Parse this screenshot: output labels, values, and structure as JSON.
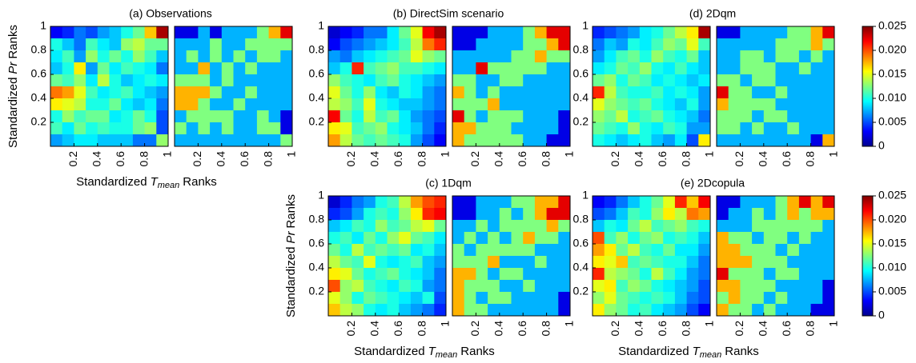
{
  "chart_data": [
    {
      "type": "heatmap",
      "title": "(a) Observations",
      "xlim": [
        0,
        1
      ],
      "ylim": [
        0,
        1
      ],
      "xticks": [
        0.2,
        0.4,
        0.6,
        0.8,
        1
      ],
      "yticks": [
        0.2,
        0.4,
        0.6,
        0.8,
        1
      ],
      "xlabel": {
        "prefix": "Standardized",
        "symbol": "T",
        "subscript": "mean",
        "suffix": "Ranks"
      },
      "ylabel": {
        "prefix": "Standardized",
        "symbol": "Pr",
        "suffix": "Ranks"
      },
      "matrix": [
        [
          0.003,
          0.004,
          0.006,
          0.005,
          0.007,
          0.008,
          0.01,
          0.012,
          0.017,
          0.024
        ],
        [
          0.01,
          0.008,
          0.006,
          0.011,
          0.009,
          0.008,
          0.013,
          0.014,
          0.012,
          0.012
        ],
        [
          0.009,
          0.011,
          0.007,
          0.013,
          0.01,
          0.012,
          0.01,
          0.013,
          0.011,
          0.008
        ],
        [
          0.008,
          0.01,
          0.016,
          0.007,
          0.012,
          0.009,
          0.011,
          0.01,
          0.009,
          0.006
        ],
        [
          0.012,
          0.011,
          0.013,
          0.009,
          0.014,
          0.01,
          0.008,
          0.009,
          0.01,
          0.009
        ],
        [
          0.019,
          0.018,
          0.015,
          0.011,
          0.009,
          0.01,
          0.011,
          0.009,
          0.008,
          0.007
        ],
        [
          0.016,
          0.015,
          0.014,
          0.01,
          0.01,
          0.012,
          0.009,
          0.008,
          0.009,
          0.006
        ],
        [
          0.01,
          0.013,
          0.011,
          0.012,
          0.012,
          0.009,
          0.01,
          0.012,
          0.01,
          0.005
        ],
        [
          0.011,
          0.009,
          0.012,
          0.01,
          0.011,
          0.01,
          0.01,
          0.012,
          0.013,
          0.005
        ],
        [
          0.007,
          0.008,
          0.009,
          0.009,
          0.008,
          0.008,
          0.008,
          0.006,
          0.006,
          0.013
        ]
      ]
    },
    {
      "type": "heatmap",
      "title": "(b) DirectSim scenario",
      "xlim": [
        0,
        1
      ],
      "ylim": [
        0,
        1
      ],
      "xticks": [
        0.2,
        0.4,
        0.6,
        0.8,
        1
      ],
      "yticks": [
        0.2,
        0.4,
        0.6,
        0.8,
        1
      ],
      "matrix": [
        [
          0.002,
          0.003,
          0.004,
          0.006,
          0.006,
          0.009,
          0.012,
          0.015,
          0.022,
          0.024
        ],
        [
          0.003,
          0.005,
          0.006,
          0.007,
          0.008,
          0.009,
          0.011,
          0.014,
          0.019,
          0.021
        ],
        [
          0.007,
          0.006,
          0.008,
          0.009,
          0.01,
          0.011,
          0.012,
          0.015,
          0.013,
          0.012
        ],
        [
          0.008,
          0.01,
          0.021,
          0.011,
          0.012,
          0.013,
          0.011,
          0.011,
          0.01,
          0.009
        ],
        [
          0.013,
          0.011,
          0.01,
          0.009,
          0.011,
          0.012,
          0.01,
          0.009,
          0.008,
          0.007
        ],
        [
          0.015,
          0.012,
          0.01,
          0.013,
          0.009,
          0.008,
          0.01,
          0.009,
          0.007,
          0.006
        ],
        [
          0.014,
          0.013,
          0.011,
          0.015,
          0.01,
          0.009,
          0.008,
          0.008,
          0.007,
          0.006
        ],
        [
          0.022,
          0.012,
          0.01,
          0.014,
          0.011,
          0.012,
          0.009,
          0.007,
          0.006,
          0.005
        ],
        [
          0.016,
          0.015,
          0.011,
          0.012,
          0.013,
          0.01,
          0.009,
          0.008,
          0.006,
          0.004
        ],
        [
          0.018,
          0.014,
          0.012,
          0.011,
          0.012,
          0.011,
          0.01,
          0.007,
          0.005,
          0.003
        ]
      ]
    },
    {
      "type": "heatmap",
      "title": "(d) 2Dqm",
      "xlim": [
        0,
        1
      ],
      "ylim": [
        0,
        1
      ],
      "xticks": [
        0.2,
        0.4,
        0.6,
        0.8,
        1
      ],
      "yticks": [
        0.2,
        0.4,
        0.6,
        0.8,
        1
      ],
      "matrix": [
        [
          0.004,
          0.005,
          0.006,
          0.007,
          0.009,
          0.01,
          0.012,
          0.014,
          0.016,
          0.024
        ],
        [
          0.006,
          0.008,
          0.007,
          0.01,
          0.009,
          0.011,
          0.013,
          0.012,
          0.015,
          0.011
        ],
        [
          0.007,
          0.009,
          0.011,
          0.012,
          0.01,
          0.013,
          0.011,
          0.01,
          0.012,
          0.008
        ],
        [
          0.009,
          0.01,
          0.012,
          0.011,
          0.013,
          0.01,
          0.009,
          0.011,
          0.009,
          0.008
        ],
        [
          0.012,
          0.013,
          0.01,
          0.012,
          0.011,
          0.009,
          0.01,
          0.009,
          0.008,
          0.009
        ],
        [
          0.021,
          0.014,
          0.011,
          0.01,
          0.01,
          0.011,
          0.009,
          0.01,
          0.009,
          0.007
        ],
        [
          0.015,
          0.013,
          0.012,
          0.011,
          0.012,
          0.01,
          0.009,
          0.008,
          0.01,
          0.007
        ],
        [
          0.013,
          0.012,
          0.014,
          0.01,
          0.011,
          0.012,
          0.01,
          0.009,
          0.008,
          0.006
        ],
        [
          0.012,
          0.011,
          0.01,
          0.013,
          0.01,
          0.009,
          0.011,
          0.01,
          0.007,
          0.007
        ],
        [
          0.01,
          0.009,
          0.008,
          0.009,
          0.01,
          0.008,
          0.007,
          0.009,
          0.005,
          0.016
        ]
      ]
    },
    {
      "type": "heatmap",
      "title": "(c) 1Dqm",
      "xlim": [
        0,
        1
      ],
      "ylim": [
        0,
        1
      ],
      "xticks": [
        0.2,
        0.4,
        0.6,
        0.8,
        1
      ],
      "yticks": [
        0.2,
        0.4,
        0.6,
        0.8,
        1
      ],
      "xlabel": {
        "prefix": "Standardized",
        "symbol": "T",
        "subscript": "mean",
        "suffix": "Ranks"
      },
      "ylabel": {
        "prefix": "Standardized",
        "symbol": "Pr",
        "suffix": "Ranks"
      },
      "matrix": [
        [
          0.002,
          0.004,
          0.006,
          0.007,
          0.01,
          0.011,
          0.014,
          0.018,
          0.02,
          0.021
        ],
        [
          0.004,
          0.005,
          0.007,
          0.01,
          0.011,
          0.01,
          0.013,
          0.016,
          0.021,
          0.022
        ],
        [
          0.008,
          0.009,
          0.011,
          0.01,
          0.013,
          0.011,
          0.012,
          0.014,
          0.015,
          0.012
        ],
        [
          0.01,
          0.011,
          0.009,
          0.012,
          0.01,
          0.013,
          0.015,
          0.012,
          0.011,
          0.009
        ],
        [
          0.012,
          0.01,
          0.014,
          0.011,
          0.012,
          0.011,
          0.012,
          0.009,
          0.01,
          0.008
        ],
        [
          0.014,
          0.012,
          0.011,
          0.015,
          0.01,
          0.009,
          0.01,
          0.011,
          0.008,
          0.007
        ],
        [
          0.016,
          0.015,
          0.012,
          0.01,
          0.011,
          0.012,
          0.01,
          0.009,
          0.008,
          0.006
        ],
        [
          0.02,
          0.013,
          0.014,
          0.011,
          0.01,
          0.009,
          0.011,
          0.01,
          0.007,
          0.006
        ],
        [
          0.015,
          0.013,
          0.01,
          0.012,
          0.011,
          0.01,
          0.009,
          0.008,
          0.01,
          0.005
        ],
        [
          0.017,
          0.014,
          0.013,
          0.01,
          0.009,
          0.01,
          0.008,
          0.007,
          0.006,
          0.004
        ]
      ]
    },
    {
      "type": "heatmap",
      "title": "(e) 2Dcopula",
      "xlim": [
        0,
        1
      ],
      "ylim": [
        0,
        1
      ],
      "xticks": [
        0.2,
        0.4,
        0.6,
        0.8,
        1
      ],
      "yticks": [
        0.2,
        0.4,
        0.6,
        0.8,
        1
      ],
      "xlabel": {
        "prefix": "Standardized",
        "symbol": "T",
        "subscript": "mean",
        "suffix": "Ranks"
      },
      "matrix": [
        [
          0.003,
          0.004,
          0.006,
          0.008,
          0.01,
          0.012,
          0.015,
          0.021,
          0.017,
          0.022
        ],
        [
          0.005,
          0.006,
          0.008,
          0.011,
          0.01,
          0.013,
          0.016,
          0.014,
          0.019,
          0.018
        ],
        [
          0.008,
          0.01,
          0.009,
          0.012,
          0.014,
          0.011,
          0.012,
          0.013,
          0.011,
          0.01
        ],
        [
          0.02,
          0.011,
          0.013,
          0.01,
          0.012,
          0.013,
          0.01,
          0.011,
          0.01,
          0.008
        ],
        [
          0.018,
          0.016,
          0.012,
          0.014,
          0.011,
          0.01,
          0.012,
          0.009,
          0.009,
          0.007
        ],
        [
          0.016,
          0.015,
          0.017,
          0.011,
          0.012,
          0.011,
          0.01,
          0.01,
          0.008,
          0.006
        ],
        [
          0.021,
          0.014,
          0.013,
          0.012,
          0.01,
          0.014,
          0.011,
          0.009,
          0.007,
          0.006
        ],
        [
          0.015,
          0.016,
          0.011,
          0.013,
          0.012,
          0.01,
          0.009,
          0.008,
          0.007,
          0.005
        ],
        [
          0.013,
          0.015,
          0.012,
          0.011,
          0.01,
          0.011,
          0.01,
          0.008,
          0.006,
          0.005
        ],
        [
          0.016,
          0.013,
          0.012,
          0.01,
          0.011,
          0.009,
          0.008,
          0.007,
          0.005,
          0.003
        ]
      ]
    }
  ],
  "colorbars": [
    {
      "lim": [
        0,
        0.025
      ],
      "ticks": [
        0,
        0.005,
        {
          "value": 0.01,
          "label": "0.010"
        },
        0.015,
        {
          "value": 0.02,
          "label": "0.020"
        },
        0.025
      ]
    },
    {
      "lim": [
        0,
        0.025
      ],
      "ticks": [
        0,
        0.005,
        {
          "value": 0.01,
          "label": "0.010"
        },
        0.015,
        {
          "value": 0.02,
          "label": "0.020"
        },
        0.025
      ]
    }
  ]
}
